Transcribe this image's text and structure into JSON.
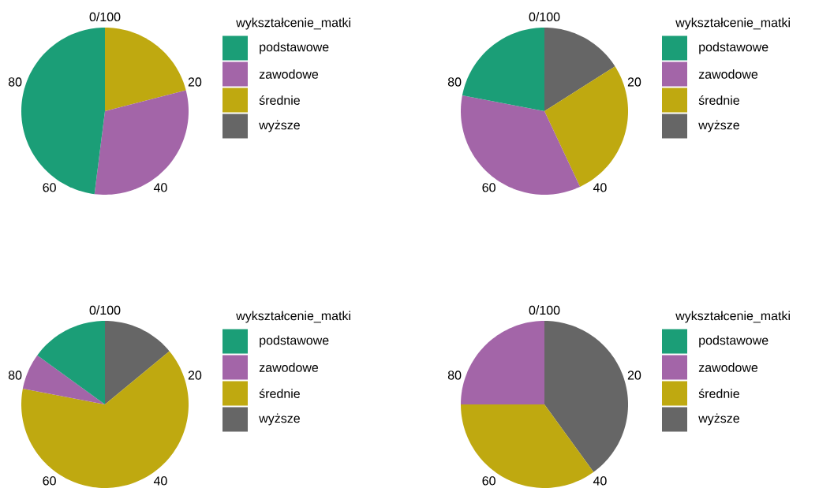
{
  "chart_data": [
    {
      "type": "pie",
      "legend_title": "wykształcenie_matki",
      "legend": "right",
      "categories": [
        "podstawowe",
        "zawodowe",
        "średnie",
        "wyższe"
      ],
      "values": [
        48,
        31,
        21,
        0
      ],
      "colors": [
        "#1b9e77",
        "#a365a8",
        "#bfa910",
        "#666666"
      ],
      "annotations": [
        "0/100",
        "20",
        "40",
        "60",
        "80"
      ]
    },
    {
      "type": "pie",
      "legend_title": "wykształcenie_matki",
      "legend": "right",
      "categories": [
        "podstawowe",
        "zawodowe",
        "średnie",
        "wyższe"
      ],
      "values": [
        22,
        35,
        27,
        16
      ],
      "colors": [
        "#1b9e77",
        "#a365a8",
        "#bfa910",
        "#666666"
      ],
      "annotations": [
        "0/100",
        "20",
        "40",
        "60",
        "80"
      ]
    },
    {
      "type": "pie",
      "legend_title": "wykształcenie_matki",
      "legend": "right",
      "categories": [
        "podstawowe",
        "zawodowe",
        "średnie",
        "wyższe"
      ],
      "values": [
        15,
        7,
        64,
        14
      ],
      "colors": [
        "#1b9e77",
        "#a365a8",
        "#bfa910",
        "#666666"
      ],
      "annotations": [
        "0/100",
        "20",
        "40",
        "60",
        "80"
      ]
    },
    {
      "type": "pie",
      "legend_title": "wykształcenie_matki",
      "legend": "right",
      "categories": [
        "podstawowe",
        "zawodowe",
        "średnie",
        "wyższe"
      ],
      "values": [
        0,
        25,
        35,
        40
      ],
      "colors": [
        "#1b9e77",
        "#a365a8",
        "#bfa910",
        "#666666"
      ],
      "annotations": [
        "0/100",
        "20",
        "40",
        "60",
        "80"
      ]
    }
  ]
}
